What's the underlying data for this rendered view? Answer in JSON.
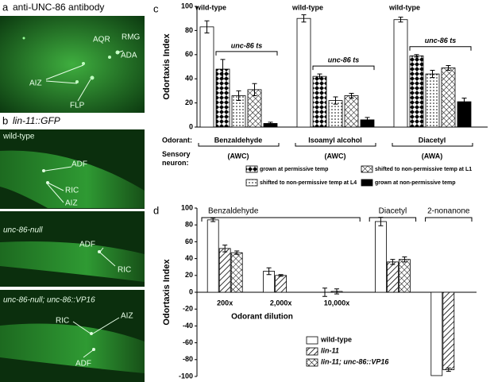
{
  "micrographs": {
    "a": {
      "panel_label": "a",
      "title": "anti-UNC-86 antibody",
      "labels": [
        "AQR",
        "RMG",
        "ADA",
        "AIZ",
        "FLP"
      ]
    },
    "b": {
      "panel_label": "b",
      "title": "lin-11::GFP",
      "images": [
        {
          "title": "wild-type",
          "labels": [
            "ADF",
            "RIC",
            "AIZ"
          ]
        },
        {
          "title": "unc-86-null",
          "labels": [
            "ADF",
            "RIC"
          ]
        },
        {
          "title": "unc-86-null; unc-86::VP16",
          "labels": [
            "RIC",
            "AIZ",
            "ADF"
          ]
        }
      ]
    }
  },
  "chart_data": [
    {
      "type": "bar",
      "panel_label": "c",
      "ylabel": "Odortaxis Index",
      "category_heading": "Odorant:",
      "sensory_heading": "Sensory neuron:",
      "categories": [
        "Benzaldehyde",
        "Isoamyl alcohol",
        "Diacetyl"
      ],
      "sensory_neurons": [
        "(AWC)",
        "(AWC)",
        "(AWA)"
      ],
      "bracket_label": "unc-86 ts",
      "ylim": [
        0,
        100
      ],
      "yticks": [
        0,
        20,
        40,
        60,
        80,
        100
      ],
      "series": [
        {
          "name": "wild-type",
          "color": "#ffffff",
          "values": [
            83,
            90,
            89
          ],
          "errors": [
            5,
            3,
            2
          ]
        },
        {
          "name": "grown at permissive temp",
          "color": "#000000",
          "pattern": "checker",
          "values": [
            48,
            42,
            59
          ],
          "errors": [
            8,
            2,
            1
          ]
        },
        {
          "name": "shifted to non-permissive temp at L4",
          "color": "#000000",
          "pattern": "dots",
          "values": [
            26,
            22,
            44
          ],
          "errors": [
            4,
            3,
            3
          ]
        },
        {
          "name": "shifted to non-permissive temp at L1",
          "color": "#000000",
          "pattern": "cross",
          "values": [
            31,
            26,
            49
          ],
          "errors": [
            5,
            2,
            2
          ]
        },
        {
          "name": "grown at non-permissive temp",
          "color": "#000000",
          "values": [
            3,
            6,
            21
          ],
          "errors": [
            1,
            2,
            3
          ]
        }
      ]
    },
    {
      "type": "bar",
      "panel_label": "d",
      "ylabel": "Odortaxis Index",
      "xlabel": "Odorant dilution",
      "categories": [
        "200x",
        "2,000x",
        "10,000x",
        null,
        null
      ],
      "group_labels": [
        "Benzaldehyde",
        null,
        null,
        "Diacetyl",
        "2-nonanone"
      ],
      "ylim": [
        -100,
        100
      ],
      "yticks": [
        -100,
        -80,
        -60,
        -40,
        -20,
        0,
        20,
        40,
        60,
        80,
        100
      ],
      "series": [
        {
          "name": "wild-type",
          "color": "#ffffff",
          "values": [
            86,
            25,
            0,
            84,
            -99
          ],
          "errors": [
            2,
            4,
            5,
            5,
            null
          ]
        },
        {
          "name": "lin-11",
          "color": "#000000",
          "pattern": "hatch",
          "values": [
            52,
            20,
            1,
            36,
            -92
          ],
          "errors": [
            4,
            1,
            3,
            3,
            2
          ]
        },
        {
          "name": "lin-11; unc-86::VP16",
          "color": "#000000",
          "pattern": "cross",
          "values": [
            47,
            null,
            null,
            39,
            null
          ],
          "errors": [
            2,
            null,
            null,
            3,
            null
          ]
        }
      ]
    }
  ]
}
